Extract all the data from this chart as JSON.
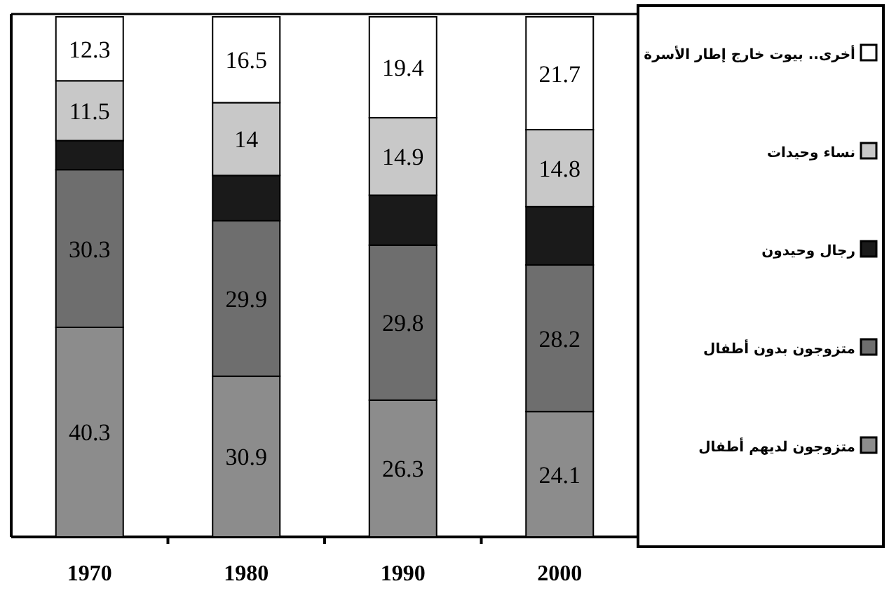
{
  "chart_data": {
    "type": "bar",
    "stacked": true,
    "legend": "right",
    "categories": [
      "1970",
      "1980",
      "1990",
      "2000"
    ],
    "series": [
      {
        "name": "متزوجون لديهم أطفال",
        "color": "#8c8c8c",
        "values": [
          40.3,
          30.9,
          26.3,
          24.1
        ],
        "value_labels": [
          "40.3",
          "30.9",
          "26.3",
          "24.1"
        ]
      },
      {
        "name": "متزوجون بدون أطفال",
        "color": "#6e6e6e",
        "values": [
          30.3,
          29.9,
          29.8,
          28.2
        ],
        "value_labels": [
          "30.3",
          "29.9",
          "29.8",
          "28.2"
        ]
      },
      {
        "name": "رجال وحيدون",
        "color": "#1a1a1a",
        "values": [
          5.6,
          8.7,
          9.6,
          11.2
        ],
        "value_labels": [
          null,
          null,
          null,
          null
        ]
      },
      {
        "name": "نساء وحيدات",
        "color": "#c8c8c8",
        "values": [
          11.5,
          14,
          14.9,
          14.8
        ],
        "value_labels": [
          "11.5",
          "14",
          "14.9",
          "14.8"
        ]
      },
      {
        "name": "أخرى.. بيوت خارج إطار الأسرة",
        "color": "#ffffff",
        "values": [
          12.3,
          16.5,
          19.4,
          21.7
        ],
        "value_labels": [
          "12.3",
          "16.5",
          "19.4",
          "21.7"
        ]
      }
    ]
  }
}
